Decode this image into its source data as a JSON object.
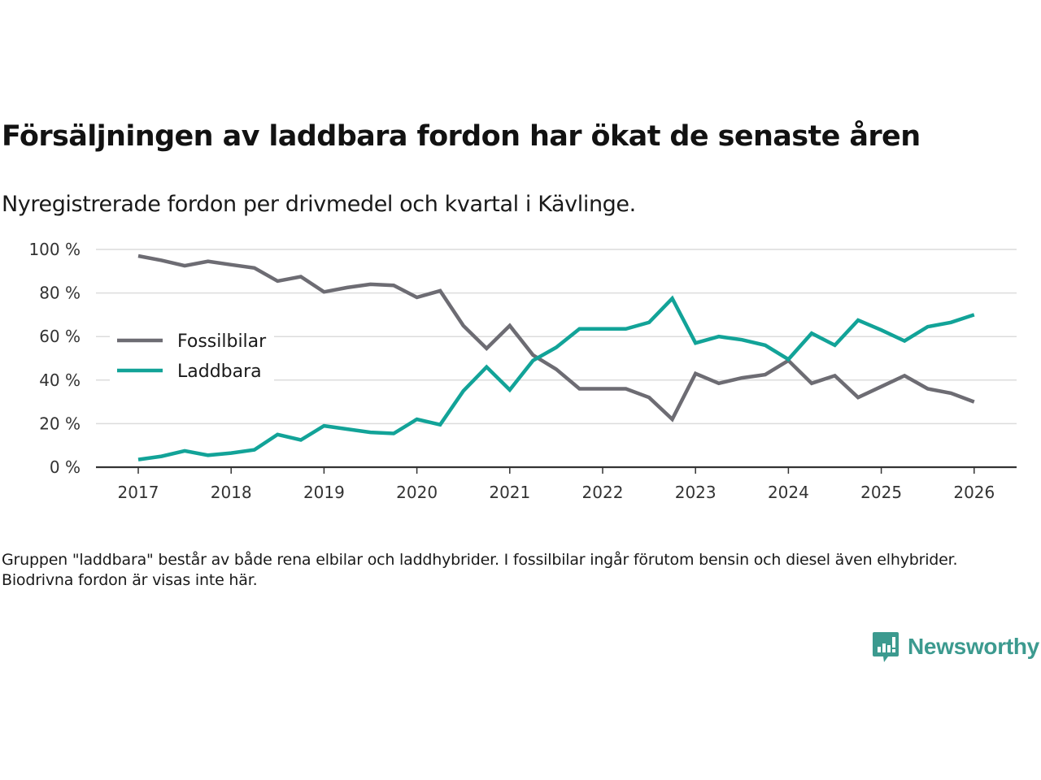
{
  "header": {
    "title": "Försäljningen av laddbara fordon har ökat de senaste åren",
    "subtitle": "Nyregistrerade fordon per drivmedel och kvartal i Kävlinge."
  },
  "footnote": "Gruppen \"laddbara\" består av både rena elbilar och laddhybrider. I fossilbilar ingår förutom bensin och diesel även elhybrider. Biodrivna fordon är visas inte här.",
  "brand": {
    "name": "Newsworthy",
    "icon": "bar-chart-speech-bubble-icon",
    "color": "#3c9a8f"
  },
  "chart_data": {
    "type": "line",
    "title": "Försäljningen av laddbara fordon har ökat de senaste åren",
    "subtitle": "Nyregistrerade fordon per drivmedel och kvartal i Kävlinge.",
    "xlabel": "",
    "ylabel": "",
    "x": [
      2017.0,
      2017.25,
      2017.5,
      2017.75,
      2018.0,
      2018.25,
      2018.5,
      2018.75,
      2019.0,
      2019.25,
      2019.5,
      2019.75,
      2020.0,
      2020.25,
      2020.5,
      2020.75,
      2021.0,
      2021.25,
      2021.5,
      2021.75,
      2022.0,
      2022.25,
      2022.5,
      2022.75,
      2023.0,
      2023.25,
      2023.5,
      2023.75,
      2024.0,
      2024.25,
      2024.5,
      2024.75,
      2025.0,
      2025.25,
      2025.5,
      2025.75,
      2026.0
    ],
    "xlim": [
      2016.55,
      2026.45
    ],
    "ylim": [
      0,
      100
    ],
    "x_ticks": [
      2017,
      2018,
      2019,
      2020,
      2021,
      2022,
      2023,
      2024,
      2025,
      2026
    ],
    "x_tick_labels": [
      "2017",
      "2018",
      "2019",
      "2020",
      "2021",
      "2022",
      "2023",
      "2024",
      "2025",
      "2026"
    ],
    "y_ticks": [
      0,
      20,
      40,
      60,
      80,
      100
    ],
    "y_tick_labels": [
      "0 %",
      "20 %",
      "40 %",
      "60 %",
      "80 %",
      "100 %"
    ],
    "grid": true,
    "legend_position": "left-middle",
    "series": [
      {
        "name": "Fossilbilar",
        "color": "#6d6c73",
        "values": [
          97,
          95,
          92.5,
          94.5,
          93,
          91.5,
          85.5,
          87.5,
          80.5,
          82.5,
          84,
          83.5,
          78,
          81,
          65,
          54.5,
          65,
          51.5,
          45,
          36,
          36,
          36,
          32,
          22,
          43,
          38.5,
          41,
          42.5,
          49,
          38.5,
          42,
          32,
          37,
          42,
          36,
          34,
          30
        ]
      },
      {
        "name": "Laddbara",
        "color": "#12a398",
        "values": [
          3.5,
          5,
          7.5,
          5.5,
          6.5,
          8,
          15,
          12.5,
          19,
          17.5,
          16,
          15.5,
          22,
          19.5,
          35,
          46,
          35.5,
          49,
          55,
          63.5,
          63.5,
          63.5,
          66.5,
          77.5,
          57,
          60,
          58.5,
          56,
          49.5,
          61.5,
          56,
          67.5,
          63,
          58,
          64.5,
          66.5,
          70
        ]
      }
    ]
  }
}
